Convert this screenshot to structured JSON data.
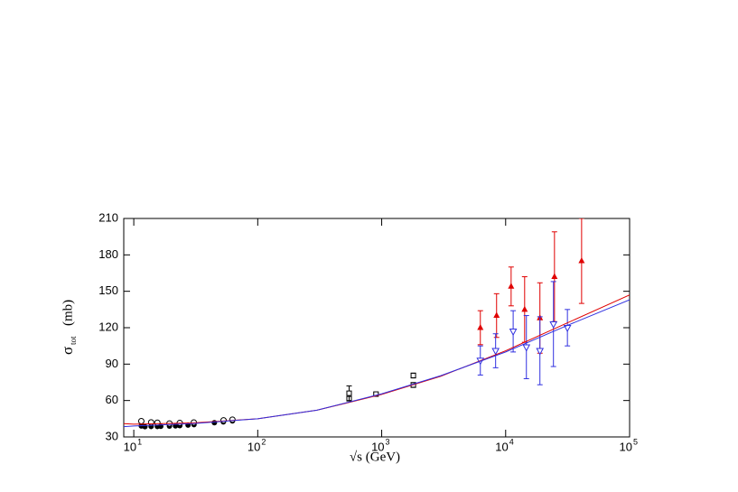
{
  "chart_data": {
    "type": "scatter",
    "x_label": "√s  (GeV)",
    "y_label": "σ",
    "y_label_sub": "tot",
    "y_label_unit": "(mb)",
    "xscale": "log",
    "xlim": [
      8.3,
      100000
    ],
    "xticks": [
      {
        "value": 10,
        "label": "10",
        "exponent": "1"
      },
      {
        "value": 100,
        "label": "10",
        "exponent": "2"
      },
      {
        "value": 1000,
        "label": "10",
        "exponent": "3"
      },
      {
        "value": 10000,
        "label": "10",
        "exponent": "4"
      },
      {
        "value": 100000,
        "label": "10",
        "exponent": "5"
      }
    ],
    "ylim": [
      30,
      210
    ],
    "yticks": [
      30,
      60,
      90,
      120,
      150,
      180,
      210
    ],
    "series": [
      {
        "mode": "markers",
        "marker": "filled-circle",
        "color": "#000000",
        "x": [
          11.5,
          12.3,
          13.8,
          15.5,
          16.5,
          19.4,
          21.7,
          23.5,
          27.4,
          30.6,
          44.7,
          52.8,
          62.5
        ],
        "values": [
          39,
          38.5,
          38.6,
          38.6,
          38.7,
          38.9,
          39.1,
          39.3,
          39.8,
          40.1,
          41.7,
          42.4,
          43.2
        ]
      },
      {
        "mode": "markers",
        "marker": "open-circle",
        "color": "#000000",
        "x": [
          11.5,
          13.8,
          15.5,
          19.4,
          23.5,
          30.5,
          53,
          62.5
        ],
        "values": [
          43,
          42,
          41.7,
          41.1,
          41.5,
          41.9,
          43.7,
          44.2
        ]
      },
      {
        "mode": "markers",
        "marker": "open-square",
        "color": "#000000",
        "x": [
          546,
          546,
          900,
          1800,
          1800
        ],
        "values": [
          61.5,
          66,
          65.3,
          72.8,
          80.6
        ],
        "errors": [
          1.5,
          6,
          1,
          2,
          2
        ]
      },
      {
        "mode": "markers",
        "marker": "filled-triangle",
        "color": "#e00000",
        "x": [
          6250,
          8450,
          11070,
          14230,
          18900,
          24770,
          41000
        ],
        "values": [
          120,
          130,
          154,
          135,
          128,
          162,
          175
        ],
        "errors": [
          14,
          18,
          16,
          27,
          29,
          37,
          35
        ]
      },
      {
        "mode": "markers",
        "marker": "open-down-triangle",
        "color": "#3030e0",
        "x": [
          6250,
          8300,
          11500,
          14700,
          18900,
          24300,
          31500
        ],
        "values": [
          93,
          101,
          117,
          104,
          101,
          123,
          120
        ],
        "errors": [
          12,
          14,
          17,
          26,
          28,
          35,
          15
        ]
      },
      {
        "mode": "line",
        "color": "#e00000",
        "x": [
          8.3,
          10,
          30,
          100,
          300,
          1000,
          3000,
          10000,
          30000,
          100000
        ],
        "values": [
          41,
          40.5,
          41.5,
          45,
          52,
          65,
          80,
          101,
          123,
          147
        ]
      },
      {
        "mode": "line",
        "color": "#3030e0",
        "x": [
          8.3,
          10,
          30,
          100,
          300,
          1000,
          3000,
          10000,
          30000,
          100000
        ],
        "values": [
          38.5,
          39,
          41,
          45,
          52,
          65.5,
          80.5,
          100,
          121,
          143
        ]
      }
    ]
  }
}
